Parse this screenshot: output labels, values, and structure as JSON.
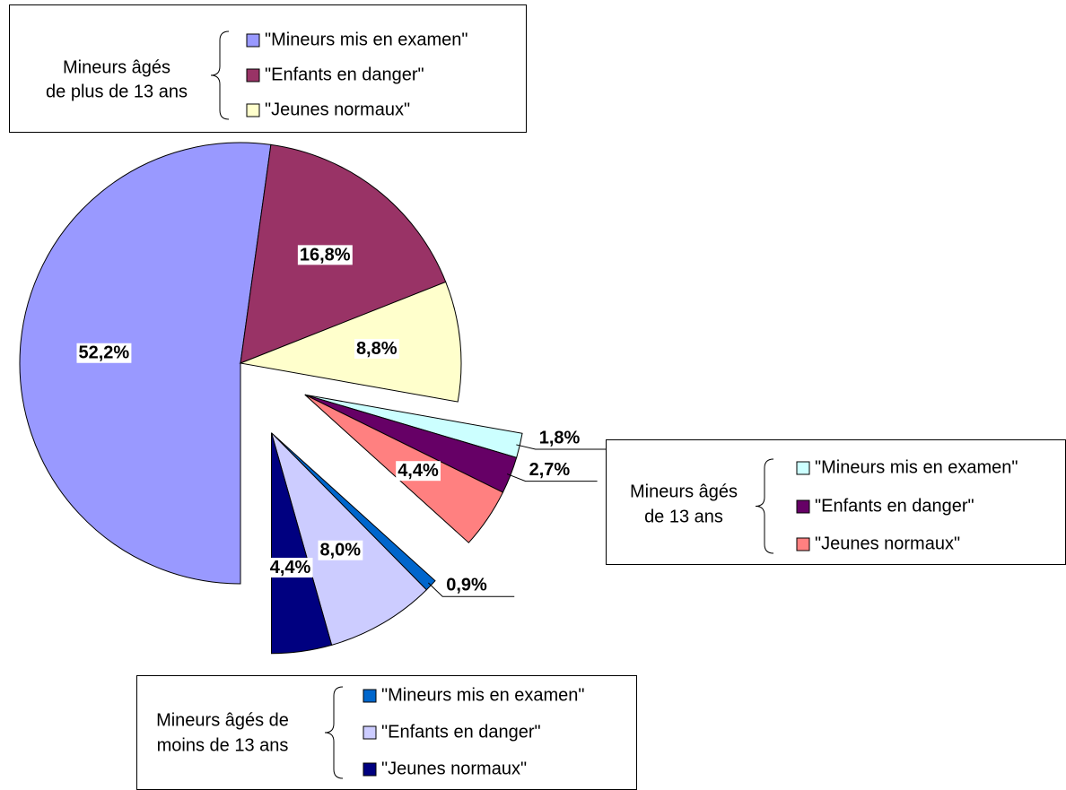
{
  "chart_data": {
    "type": "pie",
    "groups": [
      {
        "name": [
          "Mineurs âgés",
          "de plus de 13 ans"
        ],
        "categories": [
          "\"Mineurs mis en examen\"",
          "\"Enfants en danger\"",
          "\"Jeunes normaux\""
        ],
        "values": [
          52.2,
          16.8,
          8.8
        ],
        "value_labels": [
          "52,2%",
          "16,8%",
          "8,8%"
        ],
        "colors": [
          "#9999ff",
          "#993366",
          "#ffffcc"
        ]
      },
      {
        "name": [
          "Mineurs âgés",
          "de 13 ans"
        ],
        "categories": [
          "\"Mineurs mis en examen\"",
          "\"Enfants en danger\"",
          "\"Jeunes normaux\""
        ],
        "values": [
          1.8,
          2.7,
          4.4
        ],
        "value_labels": [
          "1,8%",
          "2,7%",
          "4,4%"
        ],
        "colors": [
          "#ccffff",
          "#660066",
          "#ff8080"
        ]
      },
      {
        "name": [
          "Mineurs âgés de",
          "moins de 13 ans"
        ],
        "categories": [
          "\"Mineurs mis en examen\"",
          "\"Enfants en danger\"",
          "\"Jeunes normaux\""
        ],
        "values": [
          0.9,
          8.0,
          4.4
        ],
        "value_labels": [
          "0,9%",
          "8,0%",
          "4,4%"
        ],
        "colors": [
          "#0066cc",
          "#ccccff",
          "#000080"
        ]
      }
    ]
  }
}
